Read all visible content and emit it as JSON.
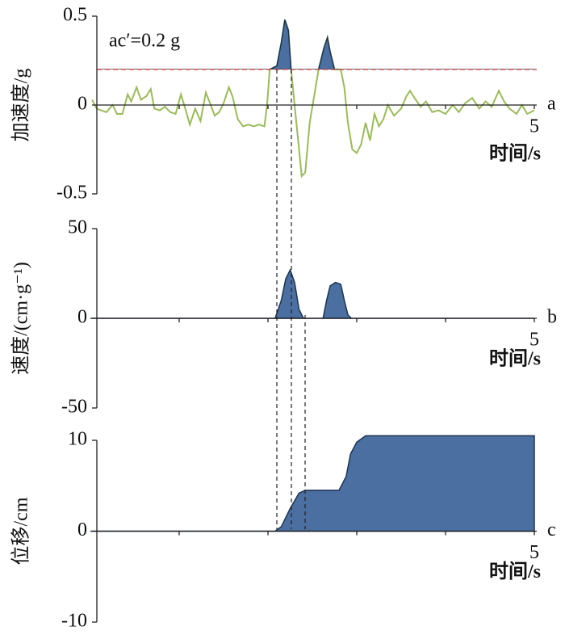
{
  "chart_data": [
    {
      "type": "line",
      "y_label": "加速度/g",
      "x_label": "时间/s",
      "panel_label": "a",
      "annotation": "ac′=0.2 g",
      "threshold": 0.2,
      "threshold_color": "#d9534f",
      "color": "#9bbb59",
      "fill_color": "#4a6fa0",
      "xlim": [
        0,
        5
      ],
      "xticks": [
        5
      ],
      "xminor_ticks": [
        1,
        2,
        3,
        4
      ],
      "ylim": [
        -0.5,
        0.5
      ],
      "yticks": [
        0.5,
        0,
        -0.5
      ],
      "x": [
        0.02,
        0.07,
        0.12,
        0.18,
        0.25,
        0.3,
        0.36,
        0.42,
        0.46,
        0.52,
        0.57,
        0.63,
        0.68,
        0.72,
        0.78,
        0.84,
        0.9,
        0.96,
        1.02,
        1.08,
        1.12,
        1.18,
        1.24,
        1.3,
        1.34,
        1.4,
        1.45,
        1.5,
        1.56,
        1.6,
        1.66,
        1.72,
        1.78,
        1.84,
        1.9,
        1.96,
        1.99,
        2.02,
        2.1,
        2.15,
        2.19,
        2.23,
        2.26,
        2.3,
        2.34,
        2.38,
        2.42,
        2.47,
        2.52,
        2.57,
        2.63,
        2.67,
        2.7,
        2.75,
        2.82,
        2.86,
        2.9,
        2.95,
        3.0,
        3.05,
        3.1,
        3.15,
        3.2,
        3.25,
        3.3,
        3.35,
        3.42,
        3.5,
        3.56,
        3.6,
        3.65,
        3.72,
        3.78,
        3.85,
        3.92,
        4.0,
        4.08,
        4.15,
        4.22,
        4.3,
        4.38,
        4.45,
        4.52,
        4.6,
        4.66,
        4.72,
        4.8,
        4.86,
        4.92,
        5.0
      ],
      "values": [
        0.03,
        -0.02,
        -0.03,
        -0.04,
        0.0,
        -0.05,
        -0.05,
        0.06,
        0.02,
        0.1,
        0.03,
        0.05,
        0.09,
        -0.02,
        -0.03,
        -0.01,
        -0.04,
        -0.05,
        0.06,
        -0.04,
        -0.11,
        -0.02,
        -0.09,
        0.07,
        0.02,
        -0.06,
        -0.04,
        0.01,
        0.1,
        0.05,
        -0.08,
        -0.12,
        -0.11,
        -0.12,
        -0.11,
        -0.12,
        0.0,
        0.2,
        0.22,
        0.35,
        0.48,
        0.42,
        0.2,
        0.0,
        -0.2,
        -0.4,
        -0.38,
        -0.1,
        0.05,
        0.2,
        0.32,
        0.38,
        0.3,
        0.2,
        0.2,
        0.1,
        -0.1,
        -0.25,
        -0.27,
        -0.22,
        -0.1,
        -0.2,
        -0.05,
        -0.12,
        -0.08,
        0.0,
        -0.06,
        -0.02,
        0.05,
        0.08,
        0.04,
        -0.01,
        0.02,
        -0.04,
        -0.03,
        -0.05,
        0.0,
        -0.04,
        0.01,
        0.04,
        -0.02,
        0.02,
        -0.01,
        0.08,
        0.02,
        -0.02,
        -0.05,
        0.0,
        -0.05,
        -0.03
      ]
    },
    {
      "type": "area",
      "y_label": "速度/(cm·g⁻¹)",
      "x_label": "时间/s",
      "panel_label": "b",
      "color": "#4a6fa0",
      "xlim": [
        0,
        5
      ],
      "xticks": [
        5
      ],
      "xminor_ticks": [
        1,
        2,
        3,
        4
      ],
      "ylim": [
        -50,
        50
      ],
      "yticks": [
        50,
        0,
        -50
      ],
      "x": [
        0,
        2.08,
        2.15,
        2.2,
        2.25,
        2.3,
        2.35,
        2.4,
        2.62,
        2.66,
        2.7,
        2.76,
        2.82,
        2.86,
        2.9,
        2.94,
        5
      ],
      "values": [
        0,
        0,
        10,
        22,
        27,
        20,
        5,
        0,
        0,
        10,
        18,
        20,
        19,
        10,
        2,
        0,
        0
      ]
    },
    {
      "type": "area",
      "y_label": "位移/cm",
      "x_label": "时间/s",
      "panel_label": "c",
      "color": "#4a6fa0",
      "xlim": [
        0,
        5
      ],
      "xticks": [
        5
      ],
      "xminor_ticks": [
        1,
        2,
        3,
        4
      ],
      "ylim": [
        -10,
        10
      ],
      "yticks": [
        10,
        0,
        -10
      ],
      "x": [
        0,
        2.08,
        2.15,
        2.25,
        2.35,
        2.42,
        2.8,
        2.88,
        2.93,
        3.0,
        3.1,
        5.0
      ],
      "values": [
        0,
        0,
        0.5,
        2.5,
        4.2,
        4.5,
        4.5,
        6,
        8.5,
        9.8,
        10.5,
        10.5
      ]
    }
  ]
}
